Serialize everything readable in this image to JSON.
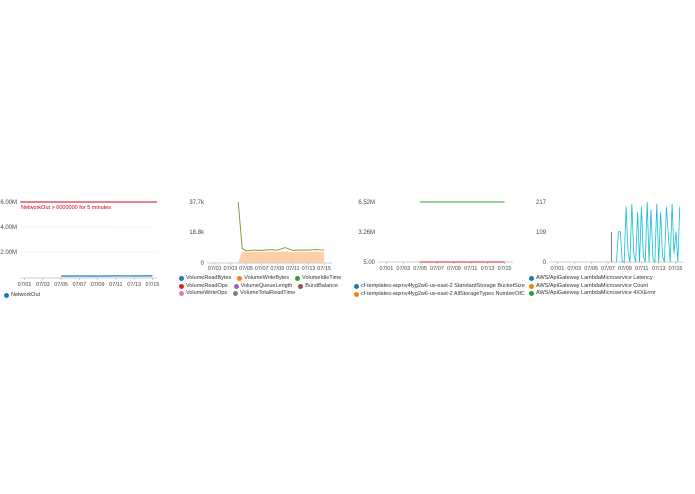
{
  "chart_data": [
    {
      "type": "line",
      "ylim": [
        0,
        6000000
      ],
      "y_ticks": [
        "6.00M",
        "4.00M",
        "2.00M"
      ],
      "x_ticks": [
        "07/01",
        "07/03",
        "07/05",
        "07/07",
        "07/09",
        "07/11",
        "07/13",
        "07/15"
      ],
      "threshold": {
        "label": "NetworkOut > 6000000 for 5 minutes",
        "value": 6000000,
        "color": "#d0021b"
      },
      "series": [
        {
          "name": "NetworkOut",
          "color": "#1f77b4",
          "x": [
            "07/05",
            "07/07",
            "07/09",
            "07/11",
            "07/13",
            "07/15"
          ],
          "values": [
            150000,
            160000,
            150000,
            170000,
            160000,
            170000
          ]
        }
      ]
    },
    {
      "type": "area",
      "y_ticks": [
        "37.7k",
        "18.8k",
        "0"
      ],
      "ylim": [
        0,
        37700
      ],
      "x_ticks": [
        "07/01",
        "07/03",
        "07/05",
        "07/07",
        "07/09",
        "07/11",
        "07/13",
        "07/15"
      ],
      "series": [
        {
          "name": "VolumeReadBytes",
          "color": "#1f77b4"
        },
        {
          "name": "VolumeWriteBytes",
          "color": "#ff7f0e"
        },
        {
          "name": "VolumeIdleTime",
          "color": "#2ca02c"
        },
        {
          "name": "VolumeReadOps",
          "color": "#d62728"
        },
        {
          "name": "VolumeQueueLength",
          "color": "#9467bd"
        },
        {
          "name": "BurstBalance",
          "color": "#8c564b"
        },
        {
          "name": "VolumeWriteOps",
          "color": "#e377c2"
        },
        {
          "name": "VolumeTotalReadTime",
          "color": "#7f7f7f"
        }
      ],
      "idle_time_x": [
        "07/04",
        "07/04.5",
        "07/05",
        "07/06",
        "07/07",
        "07/08",
        "07/09",
        "07/10",
        "07/11",
        "07/12",
        "07/13",
        "07/14",
        "07/15"
      ],
      "idle_time_values": [
        37700,
        9000,
        7500,
        8000,
        7800,
        8200,
        7900,
        9500,
        7800,
        8100,
        8000,
        8300,
        7900
      ],
      "write_bytes_values": [
        0,
        7000,
        6500,
        7000,
        6800,
        7100,
        6900,
        7200,
        6800,
        7000,
        6900,
        7100,
        6800
      ]
    },
    {
      "type": "line",
      "y_ticks": [
        "6.52M",
        "3.26M",
        "5.00"
      ],
      "ylim": [
        0,
        6520000
      ],
      "x_ticks": [
        "07/01",
        "07/03",
        "07/05",
        "07/07",
        "07/09",
        "07/11",
        "07/13",
        "07/15"
      ],
      "series": [
        {
          "name": "cf-templates-aqxnv4fyg2w6-us-east-2 StandardStorage BucketSize",
          "color": "#1f77b4",
          "x": [
            "07/05",
            "07/15"
          ],
          "values": [
            5,
            5
          ]
        },
        {
          "name": "cf-templates-aqxnv4fyg2w6-us-east-2 AllStorageTypes NumberOfC",
          "color": "#ff7f0e",
          "x": [
            "07/05",
            "07/15"
          ],
          "values": [
            5,
            5
          ]
        },
        {
          "name": "",
          "color": "#2ca02c",
          "x": [
            "07/05",
            "07/15"
          ],
          "values": [
            6520000,
            6520000
          ]
        },
        {
          "name": "",
          "color": "#d62728",
          "x": [
            "07/05",
            "07/15"
          ],
          "values": [
            5,
            5
          ]
        }
      ]
    },
    {
      "type": "line",
      "y_ticks": [
        "217",
        "109",
        "0"
      ],
      "ylim": [
        0,
        217
      ],
      "x_ticks": [
        "07/01",
        "07/03",
        "07/05",
        "07/07",
        "07/09",
        "07/11",
        "07/13",
        "07/15"
      ],
      "series": [
        {
          "name": "AWS/ApiGateway LambdaMicroservice Latency",
          "color": "#1f77b4"
        },
        {
          "name": "AWS/ApiGateway LambdaMicroservice Count",
          "color": "#ff7f0e"
        },
        {
          "name": "AWS/ApiGateway LambdaMicroservice 4XXError",
          "color": "#2ca02c"
        }
      ],
      "latency_values": [
        0,
        109,
        110,
        0,
        0,
        200,
        40,
        0,
        210,
        30,
        0,
        180,
        0,
        200,
        20,
        0,
        217,
        0,
        190,
        10,
        0,
        210,
        0,
        180,
        20,
        0,
        200,
        100,
        0,
        210,
        30,
        110,
        0,
        200
      ],
      "latency_x_start": "07/08",
      "latency_x_end": "07/15.5"
    }
  ]
}
